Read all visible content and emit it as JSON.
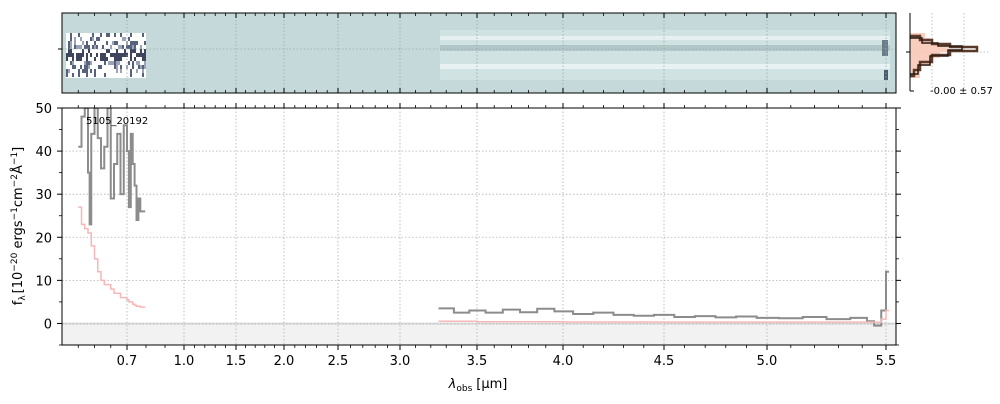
{
  "chart_data": {
    "type": "line",
    "object_label": "5105_20192",
    "noise_stat": "-0.00 ± 0.57",
    "xlabel_main": "λ",
    "xlabel_sub": "obs",
    "xlabel_unit": "[μm]",
    "ylabel_main": "f",
    "ylabel_sub": "λ",
    "ylabel_pre": "[10",
    "ylabel_exp1": "−20",
    "ylabel_mid1": " ergs",
    "ylabel_exp2": "−1",
    "ylabel_mid2": "cm",
    "ylabel_exp3": "−2",
    "ylabel_mid3": "Å",
    "ylabel_exp4": "−1",
    "ylabel_post": "]",
    "x_ticks": [
      "0.7",
      "1.0",
      "1.5",
      "2.0",
      "2.5",
      "3.0",
      "3.5",
      "4.0",
      "4.5",
      "5.0",
      "5.5"
    ],
    "x_tick_values": [
      0.7,
      1.0,
      1.5,
      2.0,
      2.5,
      3.0,
      3.5,
      4.0,
      4.5,
      5.0,
      5.5
    ],
    "y_ticks": [
      "0",
      "10",
      "20",
      "30",
      "40",
      "50"
    ],
    "y_tick_values": [
      0,
      10,
      20,
      30,
      40,
      50
    ],
    "ylim": [
      -5,
      50
    ],
    "grid": true,
    "colors": {
      "data": "#8c8c8c",
      "model": "#f4b8b8",
      "panel2d_bg": "#c5d9da",
      "hist": "#5a3a2a",
      "hist_fill": "#f9c9b8"
    },
    "series": [
      {
        "values": [
          [
            0.55,
            41
          ],
          [
            0.56,
            48
          ],
          [
            0.57,
            50
          ],
          [
            0.58,
            35
          ],
          [
            0.585,
            23
          ],
          [
            0.59,
            44
          ],
          [
            0.6,
            50
          ],
          [
            0.61,
            43
          ],
          [
            0.62,
            36
          ],
          [
            0.63,
            41
          ],
          [
            0.64,
            50
          ],
          [
            0.65,
            29
          ],
          [
            0.66,
            37
          ],
          [
            0.67,
            44
          ],
          [
            0.68,
            30
          ],
          [
            0.69,
            46
          ],
          [
            0.7,
            40
          ],
          [
            0.71,
            27
          ],
          [
            0.72,
            44
          ],
          [
            0.73,
            37
          ],
          [
            0.74,
            32
          ],
          [
            0.75,
            24
          ],
          [
            0.76,
            29
          ],
          [
            0.77,
            26
          ],
          [
            0.78,
            26
          ],
          [
            3.25,
            3.5
          ],
          [
            3.35,
            2.5
          ],
          [
            3.45,
            3.0
          ],
          [
            3.55,
            2.5
          ],
          [
            3.65,
            3.2
          ],
          [
            3.75,
            2.6
          ],
          [
            3.85,
            3.4
          ],
          [
            3.95,
            2.8
          ],
          [
            4.05,
            2.2
          ],
          [
            4.15,
            2.5
          ],
          [
            4.25,
            2.0
          ],
          [
            4.35,
            1.8
          ],
          [
            4.45,
            2.0
          ],
          [
            4.55,
            1.5
          ],
          [
            4.65,
            1.7
          ],
          [
            4.75,
            1.4
          ],
          [
            4.85,
            1.6
          ],
          [
            4.95,
            1.3
          ],
          [
            5.05,
            1.2
          ],
          [
            5.15,
            1.5
          ],
          [
            5.25,
            1.0
          ],
          [
            5.35,
            1.3
          ],
          [
            5.42,
            0.5
          ],
          [
            5.45,
            -0.5
          ],
          [
            5.48,
            3
          ],
          [
            5.5,
            12
          ]
        ]
      },
      {
        "values": [
          [
            0.55,
            27
          ],
          [
            0.56,
            23
          ],
          [
            0.57,
            22
          ],
          [
            0.58,
            21
          ],
          [
            0.59,
            18
          ],
          [
            0.6,
            15
          ],
          [
            0.61,
            12
          ],
          [
            0.62,
            10
          ],
          [
            0.63,
            9
          ],
          [
            0.64,
            9
          ],
          [
            0.65,
            8
          ],
          [
            0.66,
            7
          ],
          [
            0.67,
            7
          ],
          [
            0.68,
            6
          ],
          [
            0.69,
            6
          ],
          [
            0.7,
            5.5
          ],
          [
            0.71,
            5
          ],
          [
            0.72,
            5
          ],
          [
            0.73,
            4.5
          ],
          [
            0.74,
            4.2
          ],
          [
            0.75,
            4
          ],
          [
            0.76,
            4
          ],
          [
            0.77,
            3.8
          ],
          [
            0.78,
            3.8
          ],
          [
            3.25,
            0.5
          ],
          [
            3.5,
            0.4
          ],
          [
            4.0,
            0.35
          ],
          [
            4.5,
            0.3
          ],
          [
            5.0,
            0.3
          ],
          [
            5.4,
            0.3
          ],
          [
            5.48,
            1
          ],
          [
            5.5,
            3
          ]
        ]
      }
    ]
  }
}
